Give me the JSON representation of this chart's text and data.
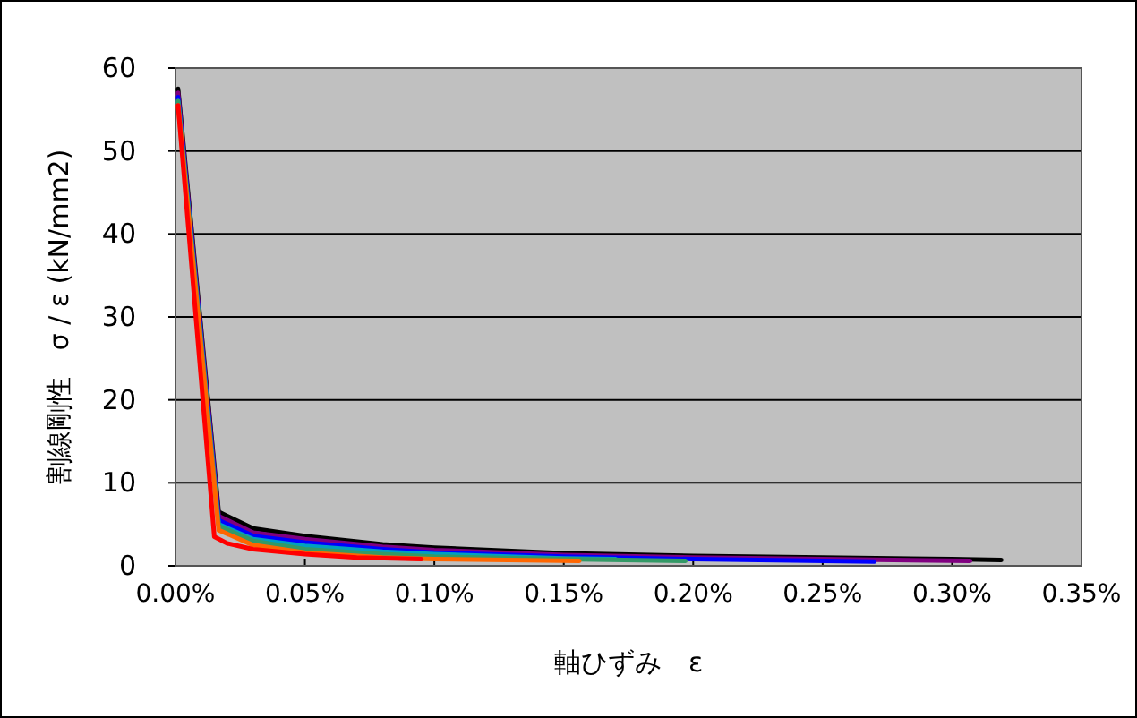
{
  "chart_data": {
    "type": "line",
    "xlabel": "軸ひずみ　ε",
    "ylabel": "割線剛性　σ / ε (kN/mm2)",
    "xlim": [
      0,
      0.35
    ],
    "ylim": [
      0,
      60
    ],
    "xticks": [
      {
        "value": 0,
        "label": "0.00%"
      },
      {
        "value": 0.05,
        "label": "0.05%"
      },
      {
        "value": 0.1,
        "label": "0.10%"
      },
      {
        "value": 0.15,
        "label": "0.15%"
      },
      {
        "value": 0.2,
        "label": "0.20%"
      },
      {
        "value": 0.25,
        "label": "0.25%"
      },
      {
        "value": 0.3,
        "label": "0.30%"
      },
      {
        "value": 0.35,
        "label": "0.35%"
      }
    ],
    "yticks": [
      0,
      10,
      20,
      30,
      40,
      50,
      60
    ],
    "grid": "y",
    "series": [
      {
        "color": "#000000",
        "x": [
          0.001,
          0.0167,
          0.03,
          0.05,
          0.08,
          0.1,
          0.15,
          0.2,
          0.25,
          0.3,
          0.319
        ],
        "values": [
          57.5,
          6.5,
          4.5,
          3.6,
          2.6,
          2.2,
          1.5,
          1.2,
          1.0,
          0.8,
          0.7
        ]
      },
      {
        "color": "#800080",
        "x": [
          0.001,
          0.0167,
          0.03,
          0.05,
          0.08,
          0.1,
          0.15,
          0.2,
          0.25,
          0.307
        ],
        "values": [
          57,
          6,
          4.0,
          3.2,
          2.3,
          1.9,
          1.3,
          1.0,
          0.8,
          0.6
        ]
      },
      {
        "color": "#0000ff",
        "x": [
          0.001,
          0.0167,
          0.03,
          0.05,
          0.08,
          0.1,
          0.15,
          0.2,
          0.27
        ],
        "values": [
          56.5,
          5.5,
          3.6,
          2.8,
          2.0,
          1.6,
          1.1,
          0.8,
          0.5
        ]
      },
      {
        "color": "#00a0c0",
        "x": [
          0.001,
          0.0167,
          0.03,
          0.05,
          0.08,
          0.1,
          0.15,
          0.17
        ],
        "values": [
          56,
          5.0,
          3.2,
          2.4,
          1.7,
          1.4,
          0.9,
          0.8
        ]
      },
      {
        "color": "#339966",
        "x": [
          0.001,
          0.0167,
          0.03,
          0.05,
          0.08,
          0.1,
          0.15,
          0.197
        ],
        "values": [
          56,
          4.8,
          3.0,
          2.0,
          1.4,
          1.1,
          0.8,
          0.6
        ]
      },
      {
        "color": "#ff6600",
        "x": [
          0.001,
          0.0167,
          0.03,
          0.05,
          0.08,
          0.1,
          0.156
        ],
        "values": [
          55.5,
          4.3,
          2.5,
          1.6,
          1.0,
          0.8,
          0.6
        ]
      },
      {
        "color": "#ff0000",
        "x": [
          0.001,
          0.015,
          0.02,
          0.03,
          0.05,
          0.07,
          0.095
        ],
        "values": [
          55.5,
          3.5,
          2.7,
          2.0,
          1.4,
          1.0,
          0.8
        ]
      }
    ]
  }
}
